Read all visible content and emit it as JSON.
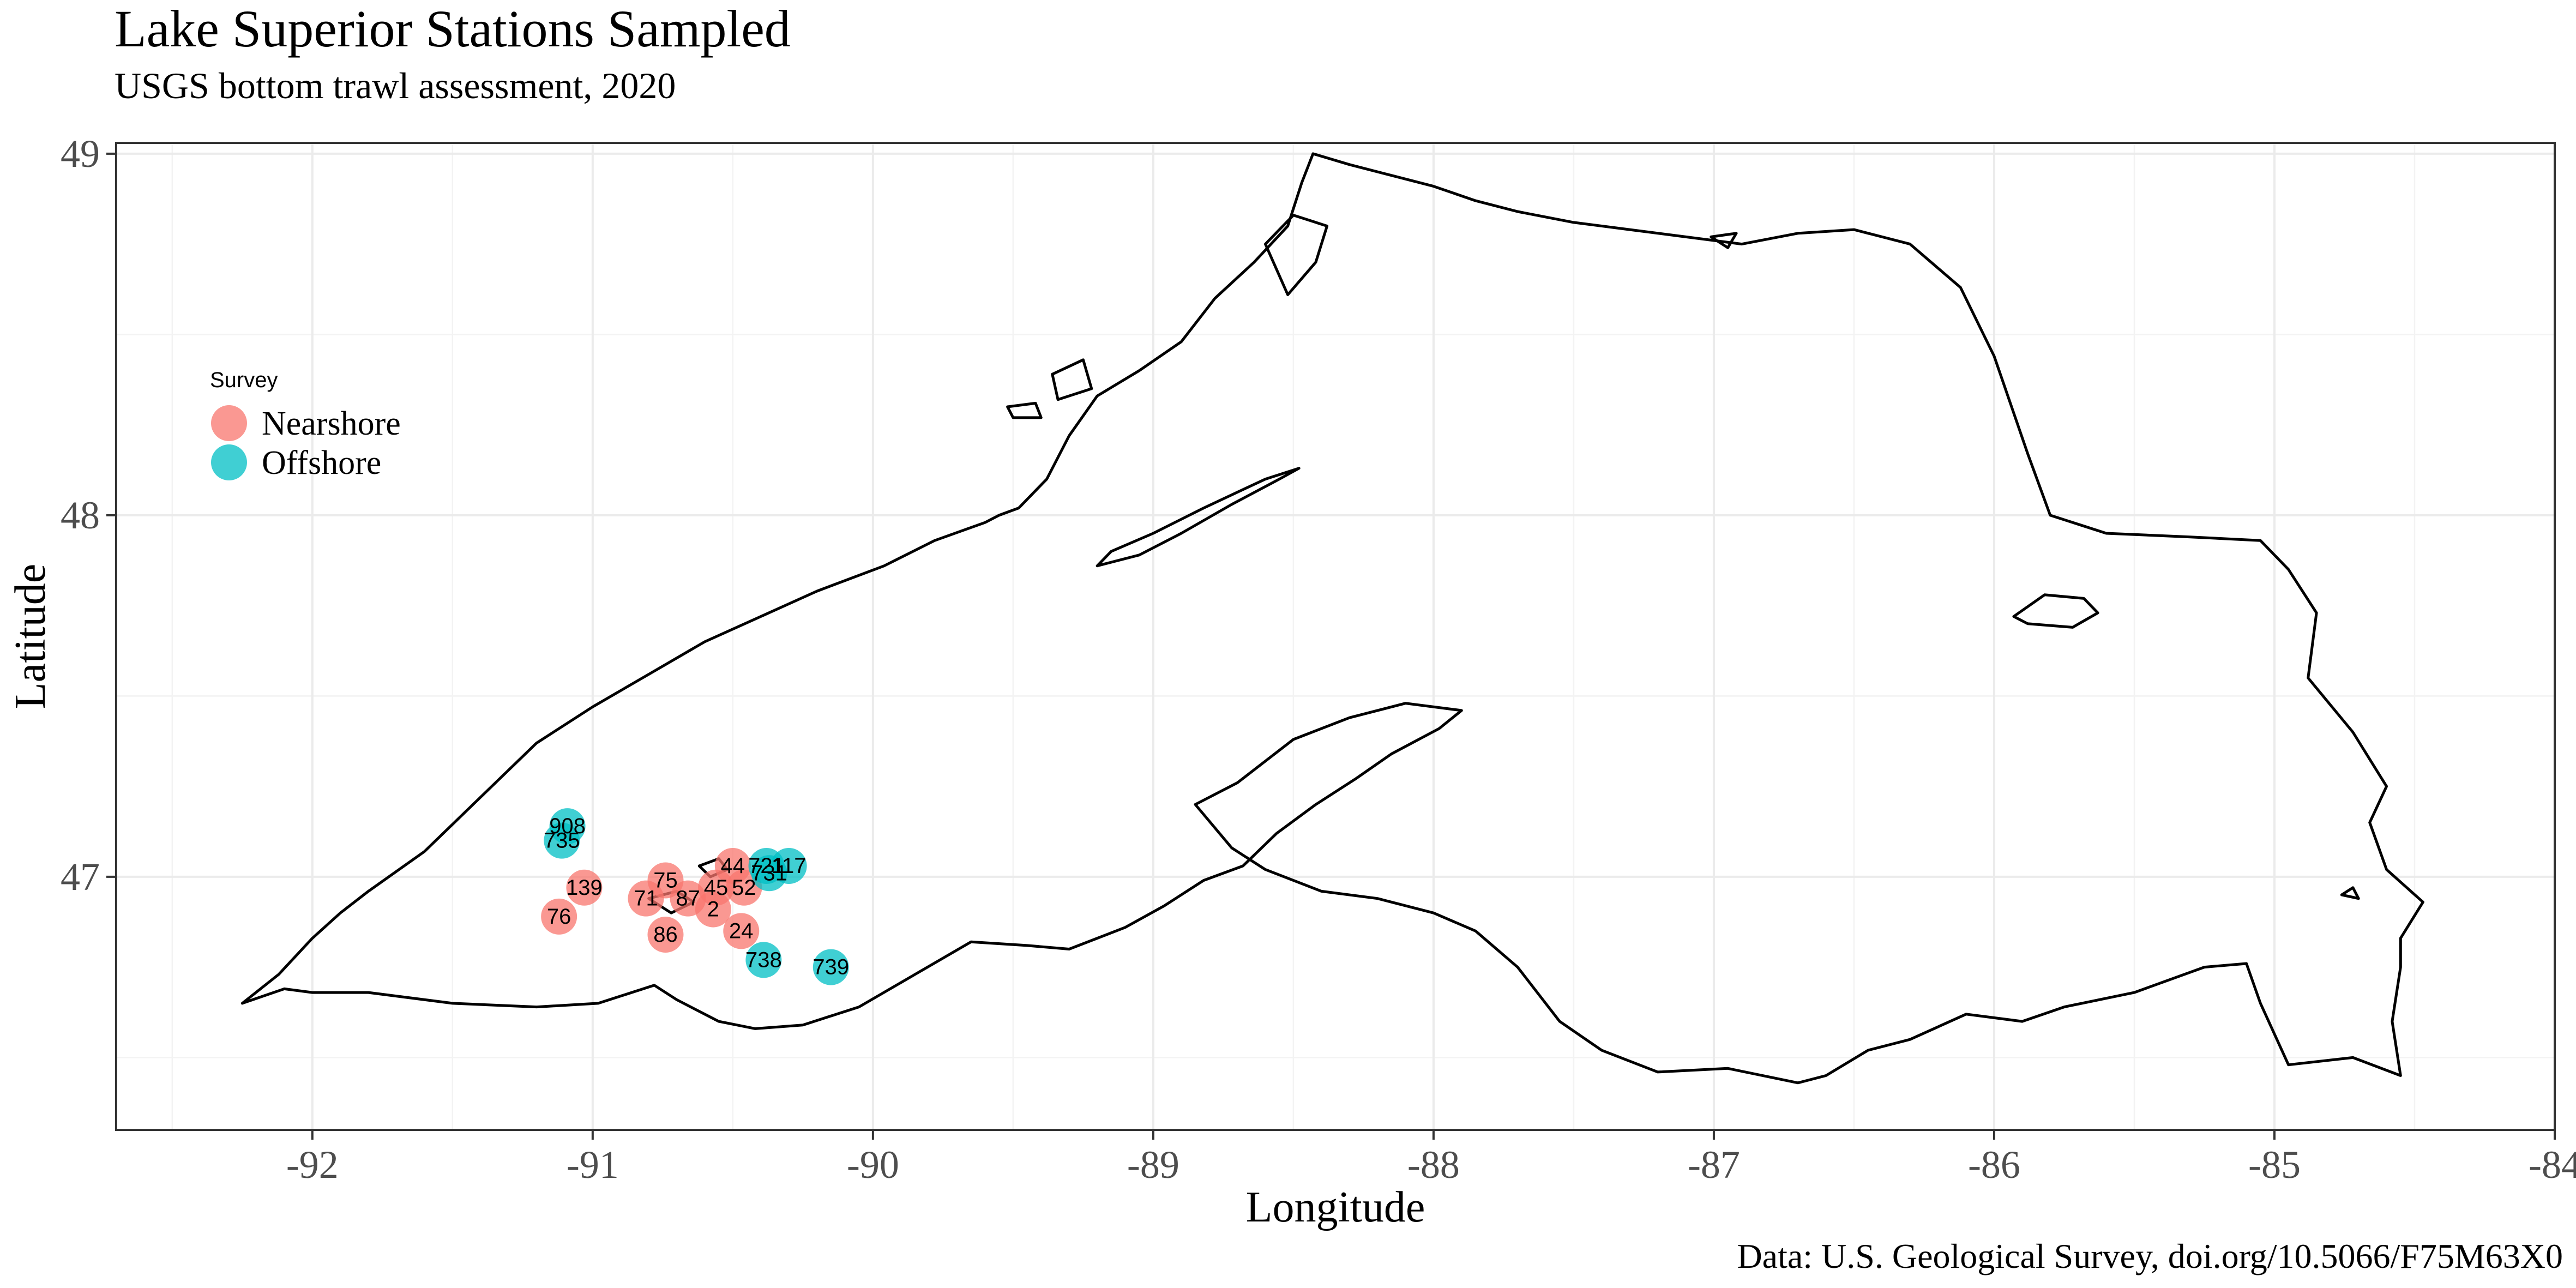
{
  "title": "Lake Superior Stations Sampled",
  "subtitle": "USGS bottom trawl assessment,  2020",
  "caption": "Data: U.S. Geological Survey, doi.org/10.5066/F75M63X0",
  "axes": {
    "xlabel": "Longitude",
    "ylabel": "Latitude",
    "xlim": [
      -92.7,
      -84.0
    ],
    "ylim": [
      46.3,
      49.03
    ],
    "x_ticks": [
      -92,
      -91,
      -90,
      -89,
      -88,
      -87,
      -86,
      -85,
      -84
    ],
    "y_ticks": [
      47,
      48,
      49
    ],
    "grid": true
  },
  "legend": {
    "title": "Survey",
    "placement": "left",
    "items": [
      {
        "label": "Nearshore",
        "color": "#F8766D"
      },
      {
        "label": "Offshore",
        "color": "#00BFC4"
      }
    ]
  },
  "chart_data": {
    "type": "scatter",
    "title": "Lake Superior Stations Sampled",
    "subtitle": "USGS bottom trawl assessment,  2020",
    "xlabel": "Longitude",
    "ylabel": "Latitude",
    "xlim": [
      -92.7,
      -84.0
    ],
    "ylim": [
      46.3,
      49.03
    ],
    "series": [
      {
        "name": "Nearshore",
        "color": "#F8766D",
        "points": [
          {
            "label": "139",
            "x": -91.03,
            "y": 46.97
          },
          {
            "label": "76",
            "x": -91.12,
            "y": 46.89
          },
          {
            "label": "75",
            "x": -90.74,
            "y": 46.99
          },
          {
            "label": "71",
            "x": -90.81,
            "y": 46.94
          },
          {
            "label": "87",
            "x": -90.66,
            "y": 46.94
          },
          {
            "label": "86",
            "x": -90.74,
            "y": 46.84
          },
          {
            "label": "44",
            "x": -90.5,
            "y": 47.03
          },
          {
            "label": "45",
            "x": -90.56,
            "y": 46.97
          },
          {
            "label": "52",
            "x": -90.46,
            "y": 46.97
          },
          {
            "label": "2",
            "x": -90.57,
            "y": 46.91
          },
          {
            "label": "24",
            "x": -90.47,
            "y": 46.85
          }
        ]
      },
      {
        "name": "Offshore",
        "color": "#00BFC4",
        "points": [
          {
            "label": "908",
            "x": -91.09,
            "y": 47.14
          },
          {
            "label": "735",
            "x": -91.11,
            "y": 47.1
          },
          {
            "label": "721",
            "x": -90.38,
            "y": 47.03
          },
          {
            "label": "117",
            "x": -90.3,
            "y": 47.03
          },
          {
            "label": "731",
            "x": -90.37,
            "y": 47.01
          },
          {
            "label": "738",
            "x": -90.39,
            "y": 46.77
          },
          {
            "label": "739",
            "x": -90.15,
            "y": 46.75
          }
        ]
      }
    ]
  },
  "map": {
    "region": "Lake Superior",
    "outline_color": "#000000",
    "shoreline": [
      [
        -92.25,
        46.65
      ],
      [
        -92.12,
        46.73
      ],
      [
        -92.0,
        46.83
      ],
      [
        -91.9,
        46.9
      ],
      [
        -91.8,
        46.96
      ],
      [
        -91.6,
        47.07
      ],
      [
        -91.4,
        47.22
      ],
      [
        -91.2,
        47.37
      ],
      [
        -91.0,
        47.47
      ],
      [
        -90.8,
        47.56
      ],
      [
        -90.6,
        47.65
      ],
      [
        -90.4,
        47.72
      ],
      [
        -90.2,
        47.79
      ],
      [
        -89.96,
        47.86
      ],
      [
        -89.78,
        47.93
      ],
      [
        -89.6,
        47.98
      ],
      [
        -89.55,
        48.0
      ],
      [
        -89.48,
        48.02
      ],
      [
        -89.38,
        48.1
      ],
      [
        -89.3,
        48.22
      ],
      [
        -89.2,
        48.33
      ],
      [
        -89.05,
        48.4
      ],
      [
        -88.9,
        48.48
      ],
      [
        -88.78,
        48.6
      ],
      [
        -88.64,
        48.7
      ],
      [
        -88.52,
        48.8
      ],
      [
        -88.47,
        48.92
      ],
      [
        -88.43,
        49.0
      ],
      [
        -88.3,
        48.97
      ],
      [
        -88.15,
        48.94
      ],
      [
        -88.0,
        48.91
      ],
      [
        -87.85,
        48.87
      ],
      [
        -87.7,
        48.84
      ],
      [
        -87.5,
        48.81
      ],
      [
        -87.3,
        48.79
      ],
      [
        -87.1,
        48.77
      ],
      [
        -86.9,
        48.75
      ],
      [
        -86.7,
        48.78
      ],
      [
        -86.5,
        48.79
      ],
      [
        -86.3,
        48.75
      ],
      [
        -86.12,
        48.63
      ],
      [
        -86.0,
        48.44
      ],
      [
        -85.88,
        48.17
      ],
      [
        -85.8,
        48.0
      ],
      [
        -85.6,
        47.95
      ],
      [
        -85.3,
        47.94
      ],
      [
        -85.05,
        47.93
      ],
      [
        -84.95,
        47.85
      ],
      [
        -84.85,
        47.73
      ],
      [
        -84.88,
        47.55
      ],
      [
        -84.72,
        47.4
      ],
      [
        -84.6,
        47.25
      ],
      [
        -84.66,
        47.15
      ],
      [
        -84.6,
        47.02
      ],
      [
        -84.47,
        46.93
      ],
      [
        -84.55,
        46.83
      ],
      [
        -84.55,
        46.75
      ],
      [
        -84.58,
        46.6
      ],
      [
        -84.55,
        46.45
      ],
      [
        -84.72,
        46.5
      ],
      [
        -84.95,
        46.48
      ],
      [
        -85.05,
        46.65
      ],
      [
        -85.1,
        46.76
      ],
      [
        -85.25,
        46.75
      ],
      [
        -85.5,
        46.68
      ],
      [
        -85.75,
        46.64
      ],
      [
        -85.9,
        46.6
      ],
      [
        -86.1,
        46.62
      ],
      [
        -86.3,
        46.55
      ],
      [
        -86.45,
        46.52
      ],
      [
        -86.6,
        46.45
      ],
      [
        -86.7,
        46.43
      ],
      [
        -86.95,
        46.47
      ],
      [
        -87.2,
        46.46
      ],
      [
        -87.4,
        46.52
      ],
      [
        -87.55,
        46.6
      ],
      [
        -87.7,
        46.75
      ],
      [
        -87.85,
        46.85
      ],
      [
        -88.0,
        46.9
      ],
      [
        -88.2,
        46.94
      ],
      [
        -88.4,
        46.96
      ],
      [
        -88.6,
        47.02
      ],
      [
        -88.72,
        47.08
      ],
      [
        -88.85,
        47.2
      ],
      [
        -88.7,
        47.26
      ],
      [
        -88.5,
        47.38
      ],
      [
        -88.3,
        47.44
      ],
      [
        -88.1,
        47.48
      ],
      [
        -87.9,
        47.46
      ],
      [
        -87.98,
        47.41
      ],
      [
        -88.15,
        47.34
      ],
      [
        -88.28,
        47.27
      ],
      [
        -88.42,
        47.2
      ],
      [
        -88.56,
        47.12
      ],
      [
        -88.68,
        47.03
      ],
      [
        -88.82,
        46.99
      ],
      [
        -88.96,
        46.92
      ],
      [
        -89.1,
        46.86
      ],
      [
        -89.3,
        46.8
      ],
      [
        -89.45,
        46.81
      ],
      [
        -89.65,
        46.82
      ],
      [
        -89.85,
        46.73
      ],
      [
        -90.05,
        46.64
      ],
      [
        -90.25,
        46.59
      ],
      [
        -90.42,
        46.58
      ],
      [
        -90.55,
        46.6
      ],
      [
        -90.7,
        46.66
      ],
      [
        -90.78,
        46.7
      ],
      [
        -90.98,
        46.65
      ],
      [
        -91.2,
        46.64
      ],
      [
        -91.5,
        46.65
      ],
      [
        -91.8,
        46.68
      ],
      [
        -92.0,
        46.68
      ],
      [
        -92.1,
        46.69
      ],
      [
        -92.25,
        46.65
      ]
    ],
    "islands": [
      [
        [
          -89.2,
          47.86
        ],
        [
          -89.05,
          47.89
        ],
        [
          -88.9,
          47.95
        ],
        [
          -88.72,
          48.03
        ],
        [
          -88.55,
          48.1
        ],
        [
          -88.48,
          48.13
        ],
        [
          -88.6,
          48.1
        ],
        [
          -88.82,
          48.02
        ],
        [
          -89.0,
          47.95
        ],
        [
          -89.15,
          47.9
        ],
        [
          -89.2,
          47.86
        ]
      ],
      [
        [
          -85.93,
          47.72
        ],
        [
          -85.82,
          47.78
        ],
        [
          -85.68,
          47.77
        ],
        [
          -85.63,
          47.73
        ],
        [
          -85.72,
          47.69
        ],
        [
          -85.88,
          47.7
        ],
        [
          -85.93,
          47.72
        ]
      ],
      [
        [
          -88.52,
          48.61
        ],
        [
          -88.42,
          48.7
        ],
        [
          -88.38,
          48.8
        ],
        [
          -88.5,
          48.83
        ],
        [
          -88.6,
          48.75
        ],
        [
          -88.52,
          48.61
        ]
      ],
      [
        [
          -89.34,
          48.32
        ],
        [
          -89.22,
          48.35
        ],
        [
          -89.25,
          48.43
        ],
        [
          -89.36,
          48.39
        ],
        [
          -89.34,
          48.32
        ]
      ],
      [
        [
          -89.5,
          48.27
        ],
        [
          -89.4,
          48.27
        ],
        [
          -89.42,
          48.31
        ],
        [
          -89.52,
          48.3
        ],
        [
          -89.5,
          48.27
        ]
      ],
      [
        [
          -90.8,
          46.94
        ],
        [
          -90.7,
          46.96
        ],
        [
          -90.64,
          46.93
        ],
        [
          -90.72,
          46.9
        ],
        [
          -90.8,
          46.94
        ]
      ],
      [
        [
          -90.62,
          47.03
        ],
        [
          -90.55,
          47.05
        ],
        [
          -90.52,
          47.02
        ],
        [
          -90.58,
          47.0
        ],
        [
          -90.62,
          47.03
        ]
      ],
      [
        [
          -87.01,
          48.77
        ],
        [
          -86.92,
          48.78
        ],
        [
          -86.95,
          48.74
        ],
        [
          -87.01,
          48.77
        ]
      ],
      [
        [
          -84.76,
          46.95
        ],
        [
          -84.72,
          46.97
        ],
        [
          -84.7,
          46.94
        ],
        [
          -84.76,
          46.95
        ]
      ]
    ]
  }
}
